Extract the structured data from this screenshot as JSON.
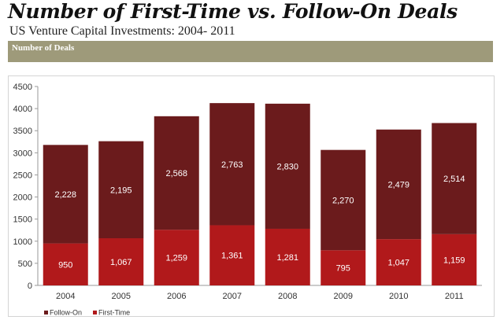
{
  "header": {
    "title": "Number of First-Time vs. Follow-On Deals",
    "subtitle": "US Venture Capital Investments: 2004- 2011",
    "band_label": "Number of Deals"
  },
  "colors": {
    "follow_on": "#6b1b1c",
    "first_time": "#b1191b",
    "band": "#9e9a7a",
    "axis": "#9a9a9a"
  },
  "chart_data": {
    "type": "bar",
    "stacked": true,
    "categories": [
      "2004",
      "2005",
      "2006",
      "2007",
      "2008",
      "2009",
      "2010",
      "2011"
    ],
    "series": [
      {
        "name": "First-Time",
        "values": [
          950,
          1067,
          1259,
          1361,
          1281,
          795,
          1047,
          1159
        ]
      },
      {
        "name": "Follow-On",
        "values": [
          2228,
          2195,
          2568,
          2763,
          2830,
          2270,
          2479,
          2514
        ]
      }
    ],
    "data_labels": {
      "first_time": [
        "950",
        "1,067",
        "1,259",
        "1,361",
        "1,281",
        "795",
        "1,047",
        "1,159"
      ],
      "follow_on": [
        "2,228",
        "2,195",
        "2,568",
        "2,763",
        "2,830",
        "2,270",
        "2,479",
        "2,514"
      ]
    },
    "yticks": [
      0,
      500,
      1000,
      1500,
      2000,
      2500,
      3000,
      3500,
      4000,
      4500
    ],
    "ylim": [
      0,
      4500
    ],
    "grid": false,
    "legend": {
      "position": "bottom-left",
      "entries": [
        "Follow-On",
        "First-Time"
      ]
    }
  }
}
